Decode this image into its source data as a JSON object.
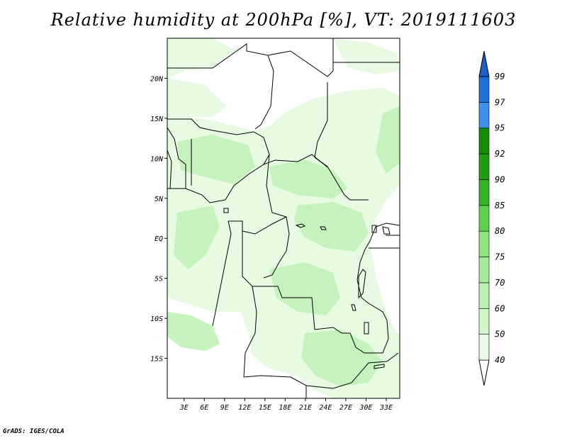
{
  "title": "Relative humidity at 200hPa [%], VT: 2019111603",
  "credit": "GrADS: IGES/COLA",
  "map": {
    "lat_range": [
      -20,
      25
    ],
    "lon_range": [
      0.5,
      35
    ],
    "lat_ticks": [
      {
        "value": 20,
        "label": "20N"
      },
      {
        "value": 15,
        "label": "15N"
      },
      {
        "value": 10,
        "label": "10N"
      },
      {
        "value": 5,
        "label": "5N"
      },
      {
        "value": 0,
        "label": "EQ"
      },
      {
        "value": -5,
        "label": "5S"
      },
      {
        "value": -10,
        "label": "10S"
      },
      {
        "value": -15,
        "label": "15S"
      }
    ],
    "lon_ticks": [
      {
        "value": 3,
        "label": "3E"
      },
      {
        "value": 6,
        "label": "6E"
      },
      {
        "value": 9,
        "label": "9E"
      },
      {
        "value": 12,
        "label": "12E"
      },
      {
        "value": 15,
        "label": "15E"
      },
      {
        "value": 18,
        "label": "18E"
      },
      {
        "value": 21,
        "label": "21E"
      },
      {
        "value": 24,
        "label": "24E"
      },
      {
        "value": 27,
        "label": "27E"
      },
      {
        "value": 30,
        "label": "30E"
      },
      {
        "value": 33,
        "label": "33E"
      }
    ],
    "fill_colors": {
      "light": "#e6fbe1",
      "mid": "#c5f2bd"
    },
    "border_color": "#000000"
  },
  "legend": {
    "bins": [
      {
        "label": "40",
        "color": "#ffffff"
      },
      {
        "label": "50",
        "color": "#e9fce6"
      },
      {
        "label": "60",
        "color": "#d2f7cb"
      },
      {
        "label": "70",
        "color": "#bdf0b3"
      },
      {
        "label": "75",
        "color": "#a5ea98"
      },
      {
        "label": "80",
        "color": "#8de57e"
      },
      {
        "label": "85",
        "color": "#5ed04e"
      },
      {
        "label": "90",
        "color": "#34b426"
      },
      {
        "label": "92",
        "color": "#1f9c12"
      },
      {
        "label": "95",
        "color": "#168a0b"
      },
      {
        "label": "97",
        "color": "#3f90ef"
      },
      {
        "label": "99",
        "color": "#1e6fdc"
      }
    ],
    "top_arrow_color": "#1b5fc7",
    "bottom_arrow_color": "#ffffff"
  }
}
